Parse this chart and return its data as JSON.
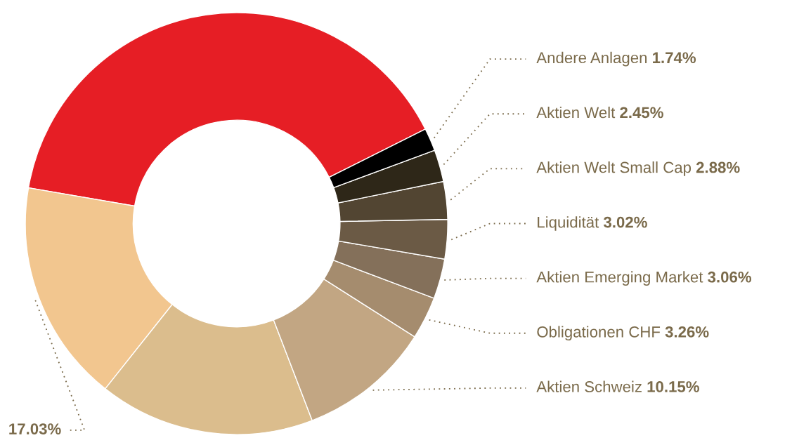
{
  "chart_data": {
    "type": "donut",
    "categories": [
      null,
      null,
      null,
      "Aktien Schweiz",
      "Obligationen CHF",
      "Aktien Emerging Market",
      "Liquidität",
      "Aktien Welt Small Cap",
      "Aktien Welt",
      "Andere Anlagen"
    ],
    "values": [
      39.9,
      17.03,
      16.51,
      10.15,
      3.26,
      3.06,
      3.02,
      2.88,
      2.45,
      1.74
    ],
    "colors": [
      "#e61e25",
      "#f2c68f",
      "#dbbd8d",
      "#c2a683",
      "#a58c6e",
      "#84705a",
      "#6b5a45",
      "#524532",
      "#2e2718",
      "#000000"
    ],
    "value_labels": [
      null,
      "17.03%",
      null,
      "10.15%",
      "3.26%",
      "3.06%",
      "3.02%",
      "2.88%",
      "2.45%",
      "1.74%"
    ]
  }
}
